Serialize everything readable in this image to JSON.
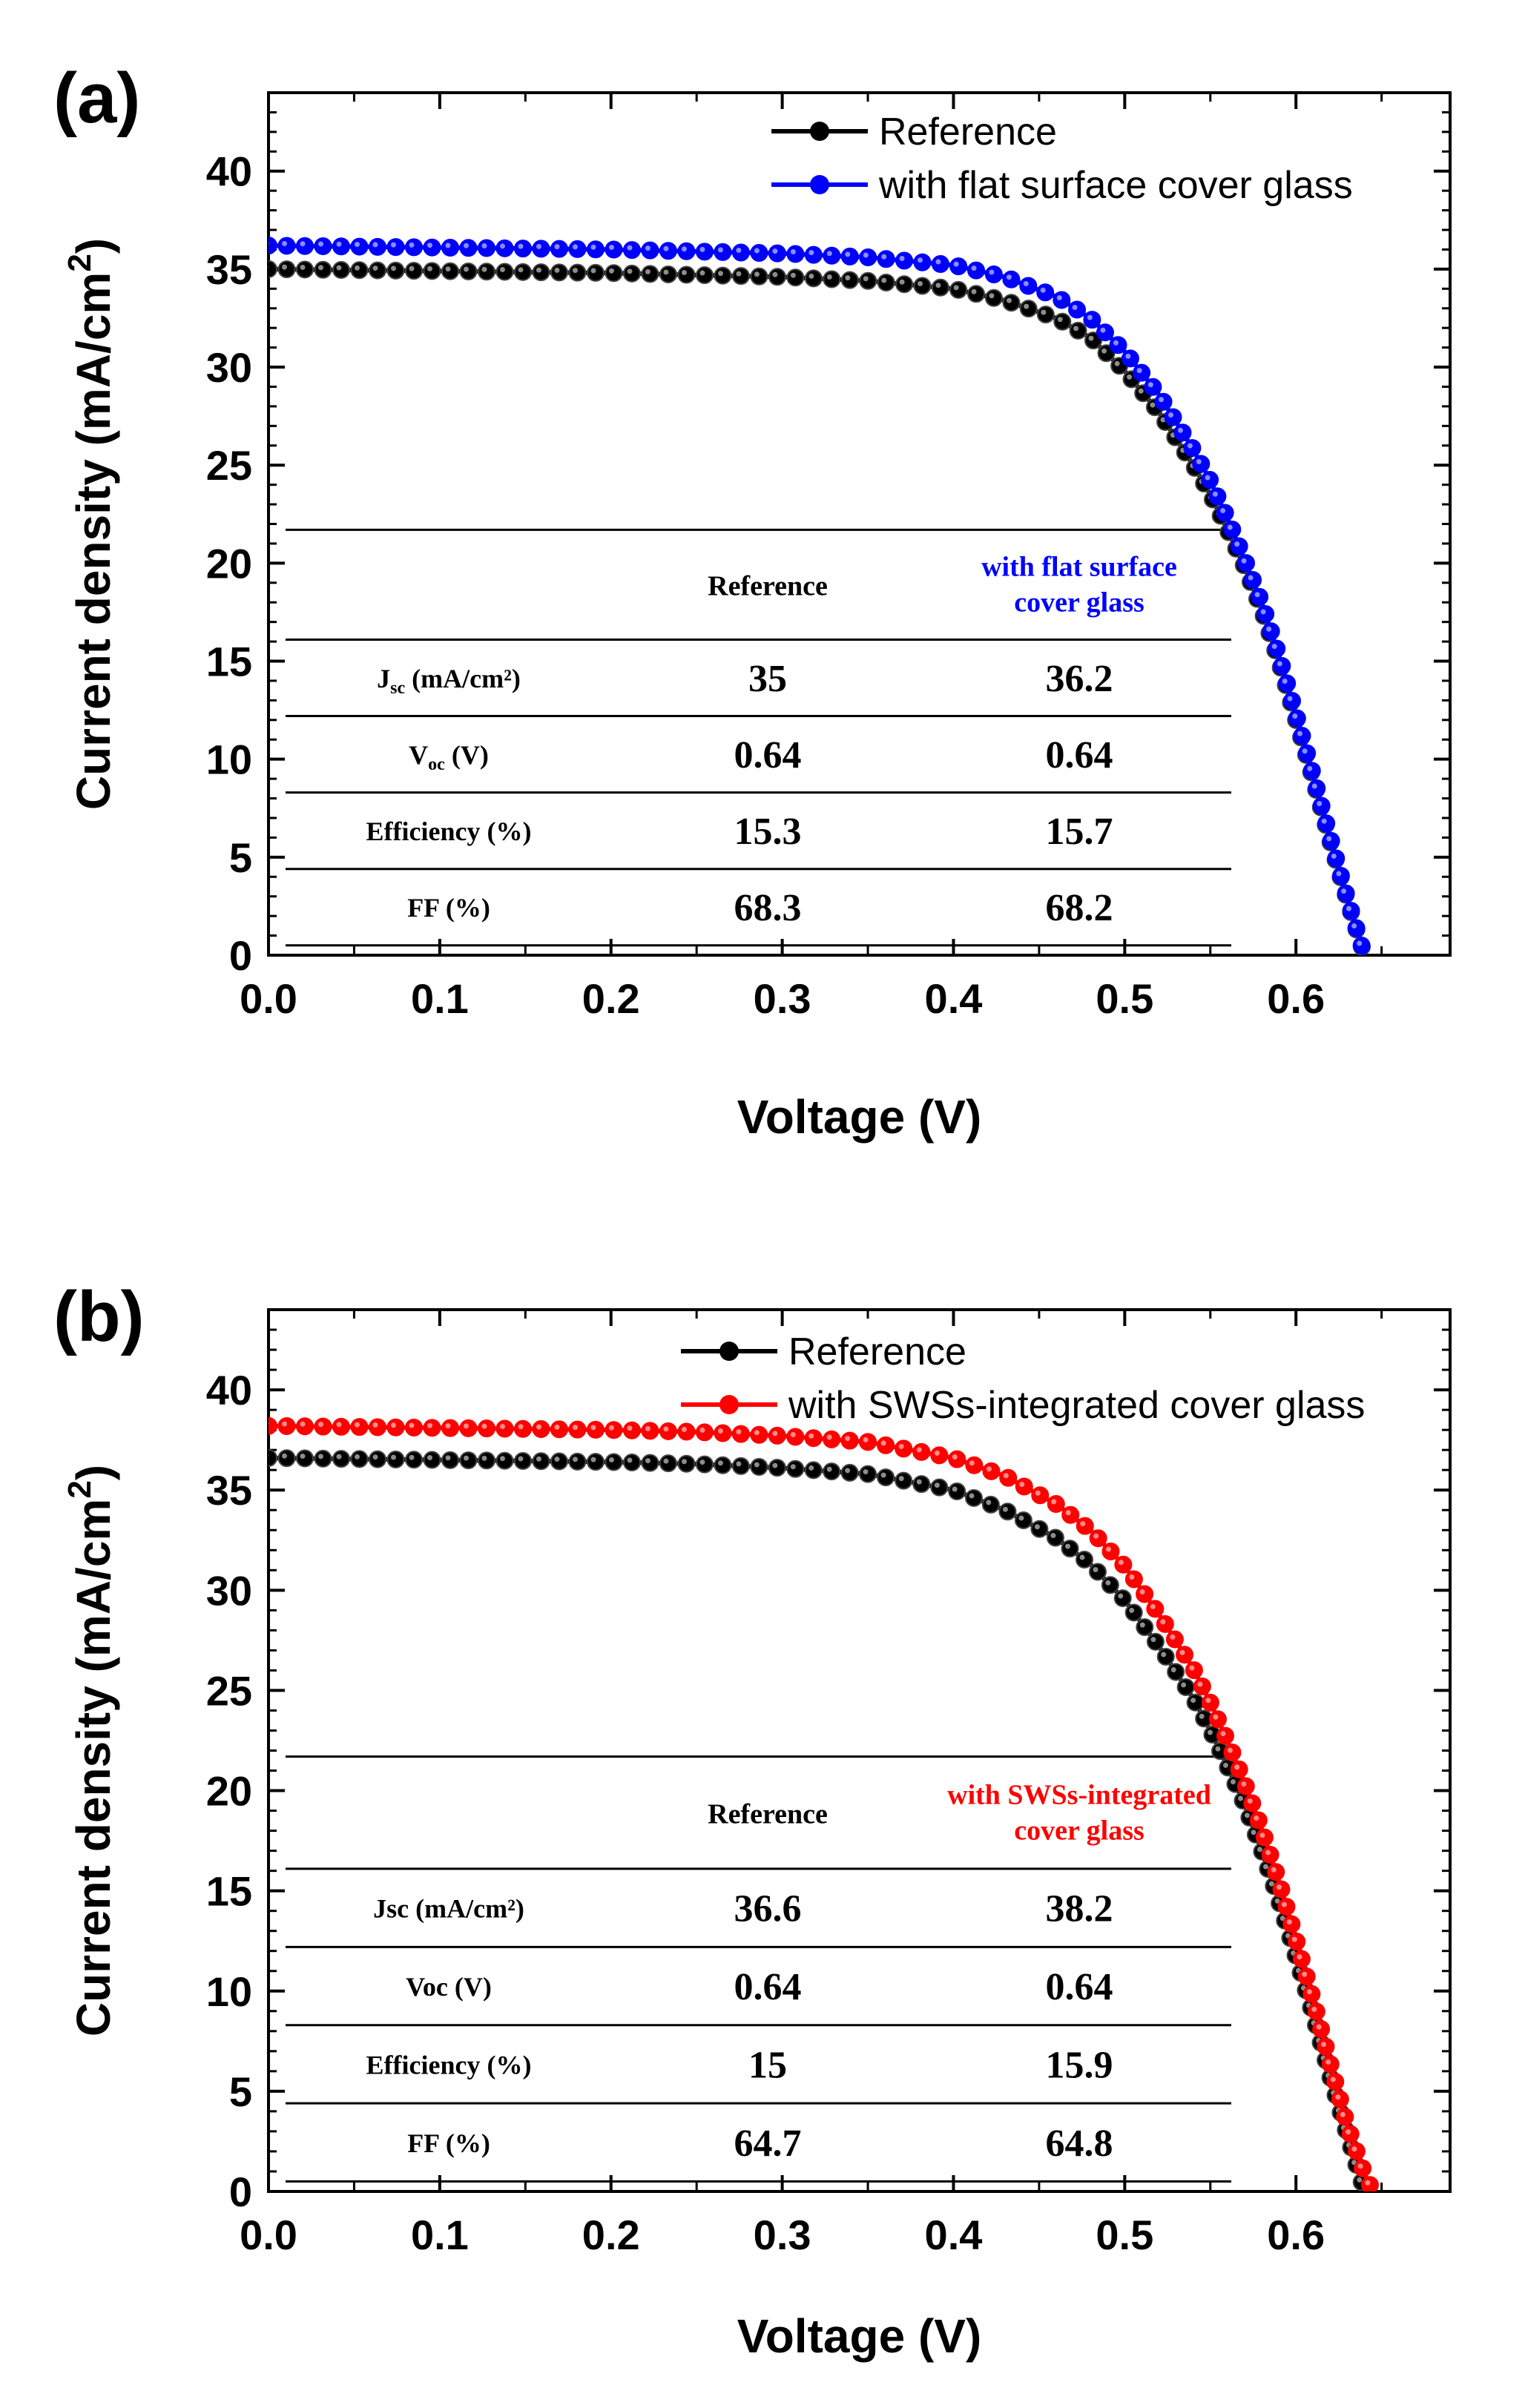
{
  "chart_data": [
    {
      "panel_label": "(a)",
      "type": "line",
      "xlabel": "Voltage (V)",
      "ylabel": "Current density (mA/cm",
      "ylabel_sup": "2",
      "ylabel_close": ")",
      "xlim": [
        0.0,
        0.69
      ],
      "ylim": [
        0,
        44
      ],
      "xticks": [
        "0.0",
        "0.1",
        "0.2",
        "0.3",
        "0.4",
        "0.5",
        "0.6"
      ],
      "yticks": [
        "0",
        "5",
        "10",
        "15",
        "20",
        "25",
        "30",
        "35",
        "40"
      ],
      "legend": [
        "Reference",
        "with flat surface cover glass"
      ],
      "series": [
        {
          "name": "Reference",
          "color": "#000000",
          "x": [
            0.0,
            0.05,
            0.1,
            0.15,
            0.2,
            0.25,
            0.3,
            0.35,
            0.4,
            0.43,
            0.46,
            0.48,
            0.5,
            0.52,
            0.54,
            0.55,
            0.56,
            0.57,
            0.58,
            0.59,
            0.6,
            0.61,
            0.62,
            0.63,
            0.64
          ],
          "y": [
            35.0,
            34.95,
            34.9,
            34.85,
            34.8,
            34.7,
            34.6,
            34.4,
            34.0,
            33.4,
            32.5,
            31.5,
            29.8,
            27.7,
            25.0,
            23.5,
            21.7,
            19.8,
            17.6,
            15.0,
            12.0,
            9.0,
            5.8,
            2.8,
            0.0
          ]
        },
        {
          "name": "with flat surface cover glass",
          "color": "#0000ff",
          "x": [
            0.0,
            0.05,
            0.1,
            0.15,
            0.2,
            0.25,
            0.3,
            0.35,
            0.4,
            0.43,
            0.46,
            0.48,
            0.5,
            0.52,
            0.54,
            0.55,
            0.56,
            0.57,
            0.58,
            0.59,
            0.6,
            0.61,
            0.62,
            0.63,
            0.64
          ],
          "y": [
            36.2,
            36.15,
            36.1,
            36.05,
            36.0,
            35.9,
            35.8,
            35.6,
            35.2,
            34.6,
            33.6,
            32.5,
            30.8,
            28.6,
            25.8,
            24.2,
            22.3,
            20.2,
            18.0,
            15.3,
            12.3,
            9.2,
            6.0,
            2.9,
            0.0
          ]
        }
      ],
      "table": {
        "headers": [
          "",
          "Reference",
          "with flat surface",
          "cover glass"
        ],
        "header_highlight_color": "#0000ff",
        "rows": [
          {
            "label": "J",
            "label_sub": "sc",
            "label_rest": " (mA/cm²)",
            "ref": "35",
            "cover": "36.2"
          },
          {
            "label": "V",
            "label_sub": "oc",
            "label_rest": " (V)",
            "ref": "0.64",
            "cover": "0.64"
          },
          {
            "label": "Efficiency (%)",
            "label_sub": "",
            "label_rest": "",
            "ref": "15.3",
            "cover": "15.7"
          },
          {
            "label": "FF (%)",
            "label_sub": "",
            "label_rest": "",
            "ref": "68.3",
            "cover": "68.2"
          }
        ]
      }
    },
    {
      "panel_label": "(b)",
      "type": "line",
      "xlabel": "Voltage (V)",
      "ylabel": "Current density (mA/cm",
      "ylabel_sup": "2",
      "ylabel_close": ")",
      "xlim": [
        0.0,
        0.69
      ],
      "ylim": [
        0,
        44
      ],
      "xticks": [
        "0.0",
        "0.1",
        "0.2",
        "0.3",
        "0.4",
        "0.5",
        "0.6"
      ],
      "yticks": [
        "0",
        "5",
        "10",
        "15",
        "20",
        "25",
        "30",
        "35",
        "40"
      ],
      "legend": [
        "Reference",
        "with SWSs-integrated cover glass"
      ],
      "series": [
        {
          "name": "Reference",
          "color": "#000000",
          "x": [
            0.0,
            0.05,
            0.1,
            0.15,
            0.2,
            0.25,
            0.3,
            0.35,
            0.4,
            0.43,
            0.46,
            0.48,
            0.5,
            0.52,
            0.54,
            0.55,
            0.56,
            0.57,
            0.58,
            0.59,
            0.6,
            0.61,
            0.62,
            0.63,
            0.64
          ],
          "y": [
            36.6,
            36.55,
            36.5,
            36.45,
            36.4,
            36.3,
            36.1,
            35.8,
            35.0,
            34.0,
            32.6,
            31.3,
            29.5,
            27.2,
            24.6,
            23.0,
            21.2,
            19.3,
            17.0,
            14.5,
            11.7,
            8.8,
            5.7,
            2.8,
            0.0
          ]
        },
        {
          "name": "with SWSs-integrated cover glass",
          "color": "#ff0000",
          "x": [
            0.0,
            0.05,
            0.1,
            0.15,
            0.2,
            0.25,
            0.3,
            0.35,
            0.4,
            0.43,
            0.46,
            0.48,
            0.5,
            0.52,
            0.54,
            0.55,
            0.56,
            0.57,
            0.58,
            0.59,
            0.6,
            0.61,
            0.62,
            0.63,
            0.64,
            0.645
          ],
          "y": [
            38.2,
            38.15,
            38.1,
            38.05,
            38.0,
            37.9,
            37.7,
            37.4,
            36.6,
            35.7,
            34.3,
            33.0,
            31.2,
            28.8,
            26.1,
            24.4,
            22.5,
            20.4,
            18.1,
            15.5,
            12.6,
            9.6,
            6.4,
            3.3,
            0.9,
            0.0
          ]
        }
      ],
      "table": {
        "headers": [
          "",
          "Reference",
          "with SWSs-integrated",
          "cover glass"
        ],
        "header_highlight_color": "#ff0000",
        "rows": [
          {
            "label": "Jsc (mA/cm²)",
            "label_sub": "",
            "label_rest": "",
            "ref": "36.6",
            "cover": "38.2"
          },
          {
            "label": "Voc (V)",
            "label_sub": "",
            "label_rest": "",
            "ref": "0.64",
            "cover": "0.64"
          },
          {
            "label": "Efficiency (%)",
            "label_sub": "",
            "label_rest": "",
            "ref": "15",
            "cover": "15.9"
          },
          {
            "label": "FF (%)",
            "label_sub": "",
            "label_rest": "",
            "ref": "64.7",
            "cover": "64.8"
          }
        ]
      }
    }
  ]
}
